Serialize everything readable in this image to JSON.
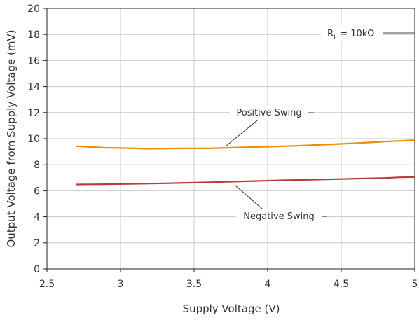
{
  "chart_data": {
    "type": "line",
    "title": "",
    "xlabel": "Supply Voltage (V)",
    "ylabel": "Output Voltage from Supply Voltage (mV)",
    "xlim": [
      2.5,
      5
    ],
    "ylim": [
      0,
      20
    ],
    "xticks": [
      "2.5",
      "3",
      "3.5",
      "4",
      "4.5",
      "5"
    ],
    "yticks": [
      "0",
      "2",
      "4",
      "6",
      "8",
      "10",
      "12",
      "14",
      "16",
      "18",
      "20"
    ],
    "grid": true,
    "legend_note": {
      "symbol": "R",
      "subscript": "L",
      "text": " = 10kΩ"
    },
    "series": [
      {
        "name": "Positive Swing",
        "color": "#f08c00",
        "x": [
          2.7,
          2.9,
          3.1,
          3.2,
          3.3,
          3.5,
          3.6,
          3.8,
          4.0,
          4.2,
          4.4,
          4.6,
          4.8,
          5.0
        ],
        "y": [
          9.42,
          9.3,
          9.25,
          9.22,
          9.24,
          9.26,
          9.25,
          9.32,
          9.38,
          9.45,
          9.55,
          9.65,
          9.78,
          9.88
        ]
      },
      {
        "name": "Negative Swing",
        "color": "#b83c3c",
        "x": [
          2.7,
          2.9,
          3.1,
          3.3,
          3.5,
          3.7,
          3.9,
          4.1,
          4.3,
          4.5,
          4.6,
          4.7,
          4.8,
          4.9,
          5.0
        ],
        "y": [
          6.48,
          6.5,
          6.53,
          6.57,
          6.62,
          6.68,
          6.74,
          6.8,
          6.85,
          6.9,
          6.93,
          6.95,
          6.98,
          7.03,
          7.05
        ]
      }
    ],
    "annotations": [
      {
        "text": "Positive Swing",
        "series": 0
      },
      {
        "text": "Negative Swing",
        "series": 1
      }
    ]
  }
}
